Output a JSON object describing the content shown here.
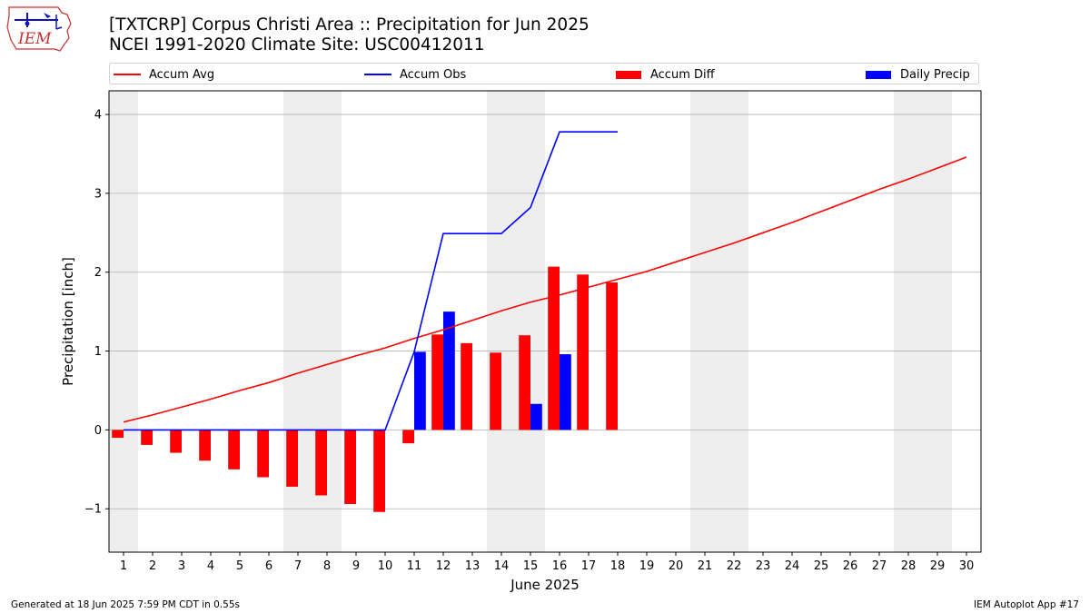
{
  "header": {
    "title_line1": "[TXTCRP] Corpus Christi Area :: Precipitation for Jun 2025",
    "title_line2": "NCEI 1991-2020 Climate Site: USC00412011",
    "logo_text": "IEM"
  },
  "legend": [
    {
      "label": "Accum Avg",
      "type": "line",
      "color": "#ff0000"
    },
    {
      "label": "Accum Obs",
      "type": "line",
      "color": "#0000ff"
    },
    {
      "label": "Accum Diff",
      "type": "bar",
      "color": "#ff0000"
    },
    {
      "label": "Daily Precip",
      "type": "bar",
      "color": "#0000ff"
    }
  ],
  "footer": {
    "left": "Generated at 18 Jun 2025 7:59 PM CDT in 0.55s",
    "right": "IEM Autoplot App #17"
  },
  "chart_data": {
    "type": "bar",
    "xlabel": "June 2025",
    "ylabel": "Precipitation [inch]",
    "xlim": [
      0.5,
      30.5
    ],
    "ylim": [
      -1.55,
      4.3
    ],
    "yticks": [
      -1,
      0,
      1,
      2,
      3,
      4
    ],
    "ytick_labels": [
      "−1",
      "0",
      "1",
      "2",
      "3",
      "4"
    ],
    "grid": "horizontal",
    "weekend_shading": [
      [
        0.5,
        1.5
      ],
      [
        6.5,
        8.5
      ],
      [
        13.5,
        15.5
      ],
      [
        20.5,
        22.5
      ],
      [
        27.5,
        29.5
      ]
    ],
    "days": [
      1,
      2,
      3,
      4,
      5,
      6,
      7,
      8,
      9,
      10,
      11,
      12,
      13,
      14,
      15,
      16,
      17,
      18,
      19,
      20,
      21,
      22,
      23,
      24,
      25,
      26,
      27,
      28,
      29,
      30
    ],
    "series": [
      {
        "name": "Accum Avg",
        "kind": "line",
        "color": "#ff0000",
        "x": [
          1,
          2,
          3,
          4,
          5,
          6,
          7,
          8,
          9,
          10,
          11,
          12,
          13,
          14,
          15,
          16,
          17,
          18,
          19,
          20,
          21,
          22,
          23,
          24,
          25,
          26,
          27,
          28,
          29,
          30
        ],
        "values": [
          0.1,
          0.19,
          0.29,
          0.39,
          0.5,
          0.6,
          0.72,
          0.83,
          0.94,
          1.04,
          1.16,
          1.27,
          1.39,
          1.51,
          1.62,
          1.71,
          1.81,
          1.91,
          2.01,
          2.13,
          2.25,
          2.37,
          2.5,
          2.63,
          2.77,
          2.91,
          3.05,
          3.18,
          3.32,
          3.46
        ]
      },
      {
        "name": "Accum Obs",
        "kind": "line",
        "color": "#0000ff",
        "x": [
          1,
          2,
          3,
          4,
          5,
          6,
          7,
          8,
          9,
          10,
          11,
          12,
          13,
          14,
          15,
          16,
          17,
          18
        ],
        "values": [
          0,
          0,
          0,
          0,
          0,
          0,
          0,
          0,
          0,
          0,
          0.99,
          2.49,
          2.49,
          2.49,
          2.82,
          3.78,
          3.78,
          3.78
        ]
      },
      {
        "name": "Accum Diff",
        "kind": "bar",
        "color": "#ff0000",
        "offset": -0.2,
        "x": [
          1,
          2,
          3,
          4,
          5,
          6,
          7,
          8,
          9,
          10,
          11,
          12,
          13,
          14,
          15,
          16,
          17,
          18
        ],
        "values": [
          -0.1,
          -0.19,
          -0.29,
          -0.39,
          -0.5,
          -0.6,
          -0.72,
          -0.83,
          -0.94,
          -1.04,
          -0.17,
          1.21,
          1.1,
          0.98,
          1.2,
          2.07,
          1.97,
          1.87
        ]
      },
      {
        "name": "Daily Precip",
        "kind": "bar",
        "color": "#0000ff",
        "offset": 0.2,
        "x": [
          11,
          12,
          15,
          16
        ],
        "values": [
          0.99,
          1.5,
          0.33,
          0.96
        ]
      }
    ]
  }
}
